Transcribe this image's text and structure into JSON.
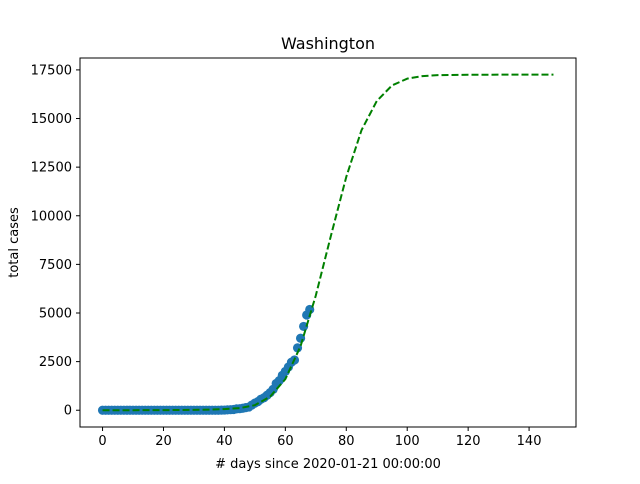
{
  "chart_data": {
    "type": "scatter",
    "title": "Washington",
    "xlabel": "# days since 2020-01-21 00:00:00",
    "ylabel": "total cases",
    "xlim": [
      -7.4,
      155.4
    ],
    "ylim": [
      -862,
      18112
    ],
    "xticks": [
      0,
      20,
      40,
      60,
      80,
      100,
      120,
      140
    ],
    "yticks": [
      0,
      2500,
      5000,
      7500,
      10000,
      12500,
      15000,
      17500
    ],
    "grid": false,
    "legend": "none",
    "series": [
      {
        "kind": "scatter",
        "color": "#1f77b4",
        "points": [
          [
            0,
            1
          ],
          [
            1,
            1
          ],
          [
            2,
            1
          ],
          [
            3,
            1
          ],
          [
            4,
            1
          ],
          [
            5,
            1
          ],
          [
            6,
            1
          ],
          [
            7,
            1
          ],
          [
            8,
            1
          ],
          [
            9,
            1
          ],
          [
            10,
            1
          ],
          [
            11,
            1
          ],
          [
            12,
            1
          ],
          [
            13,
            1
          ],
          [
            14,
            1
          ],
          [
            15,
            1
          ],
          [
            16,
            1
          ],
          [
            17,
            1
          ],
          [
            18,
            1
          ],
          [
            19,
            1
          ],
          [
            20,
            1
          ],
          [
            21,
            1
          ],
          [
            22,
            1
          ],
          [
            23,
            1
          ],
          [
            24,
            1
          ],
          [
            25,
            1
          ],
          [
            26,
            1
          ],
          [
            27,
            1
          ],
          [
            28,
            1
          ],
          [
            29,
            1
          ],
          [
            30,
            1
          ],
          [
            31,
            1
          ],
          [
            32,
            1
          ],
          [
            33,
            1
          ],
          [
            34,
            1
          ],
          [
            35,
            1
          ],
          [
            36,
            1
          ],
          [
            37,
            1
          ],
          [
            38,
            1
          ],
          [
            39,
            6
          ],
          [
            40,
            10
          ],
          [
            41,
            18
          ],
          [
            42,
            27
          ],
          [
            43,
            39
          ],
          [
            44,
            70
          ],
          [
            45,
            79
          ],
          [
            46,
            102
          ],
          [
            47,
            136
          ],
          [
            48,
            162
          ],
          [
            49,
            267
          ],
          [
            50,
            366
          ],
          [
            51,
            442
          ],
          [
            52,
            568
          ],
          [
            53,
            642
          ],
          [
            54,
            769
          ],
          [
            55,
            904
          ],
          [
            56,
            1076
          ],
          [
            57,
            1376
          ],
          [
            58,
            1524
          ],
          [
            59,
            1793
          ],
          [
            60,
            1996
          ],
          [
            61,
            2221
          ],
          [
            62,
            2469
          ],
          [
            63,
            2585
          ],
          [
            64,
            3207
          ],
          [
            65,
            3700
          ],
          [
            66,
            4310
          ],
          [
            67,
            4896
          ],
          [
            68,
            5179
          ]
        ]
      },
      {
        "kind": "line",
        "style": "dashed",
        "color": "#008000",
        "points": [
          [
            0,
            0
          ],
          [
            10,
            2
          ],
          [
            20,
            6
          ],
          [
            30,
            18
          ],
          [
            35,
            32
          ],
          [
            40,
            60
          ],
          [
            45,
            110
          ],
          [
            50,
            260
          ],
          [
            55,
            700
          ],
          [
            60,
            1600
          ],
          [
            65,
            3300
          ],
          [
            70,
            5900
          ],
          [
            75,
            9000
          ],
          [
            80,
            12000
          ],
          [
            85,
            14400
          ],
          [
            90,
            15900
          ],
          [
            95,
            16700
          ],
          [
            100,
            17050
          ],
          [
            105,
            17180
          ],
          [
            110,
            17230
          ],
          [
            120,
            17250
          ],
          [
            130,
            17255
          ],
          [
            140,
            17255
          ],
          [
            148,
            17255
          ]
        ]
      }
    ]
  }
}
